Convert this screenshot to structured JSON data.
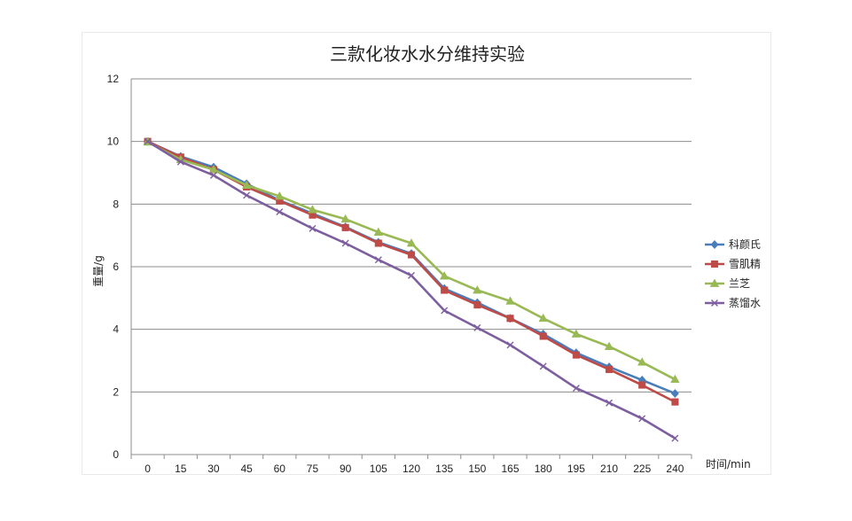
{
  "chart_data": {
    "type": "line",
    "title": "三款化妆水水分维持实验",
    "xlabel": "时间/min",
    "ylabel": "重量/g",
    "x": [
      "0",
      "15",
      "30",
      "45",
      "60",
      "75",
      "90",
      "105",
      "120",
      "135",
      "150",
      "165",
      "180",
      "195",
      "210",
      "225",
      "240"
    ],
    "ylim": [
      0,
      12
    ],
    "yticks": [
      "0",
      "2",
      "4",
      "6",
      "8",
      "10",
      "12"
    ],
    "grid": true,
    "legend_position": "right",
    "series": [
      {
        "name": "科颜氏",
        "color": "#4A7EBB",
        "marker": "diamond",
        "values": [
          10.0,
          9.52,
          9.18,
          8.65,
          8.12,
          7.7,
          7.27,
          6.78,
          6.42,
          5.3,
          4.85,
          4.35,
          3.85,
          3.25,
          2.8,
          2.38,
          1.95
        ]
      },
      {
        "name": "雪肌精",
        "color": "#BE4B48",
        "marker": "square",
        "values": [
          10.0,
          9.5,
          9.1,
          8.55,
          8.1,
          7.65,
          7.25,
          6.75,
          6.38,
          5.25,
          4.78,
          4.35,
          3.78,
          3.18,
          2.72,
          2.22,
          1.68
        ]
      },
      {
        "name": "兰芝",
        "color": "#98B954",
        "marker": "triangle",
        "values": [
          9.98,
          9.42,
          9.1,
          8.6,
          8.25,
          7.82,
          7.52,
          7.1,
          6.75,
          5.7,
          5.25,
          4.9,
          4.35,
          3.85,
          3.45,
          2.95,
          2.4
        ]
      },
      {
        "name": "蒸馏水",
        "color": "#7D5FA0",
        "marker": "x",
        "values": [
          10.0,
          9.35,
          8.92,
          8.28,
          7.75,
          7.22,
          6.75,
          6.22,
          5.72,
          4.6,
          4.05,
          3.5,
          2.82,
          2.12,
          1.65,
          1.15,
          0.52
        ]
      }
    ]
  }
}
